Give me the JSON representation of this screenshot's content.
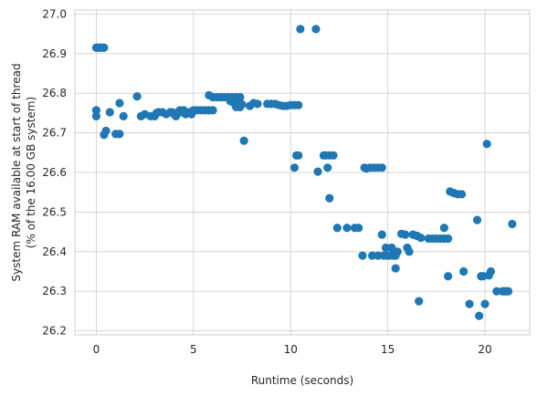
{
  "chart_data": {
    "type": "scatter",
    "title": "",
    "xlabel": "Runtime (seconds)",
    "ylabel_lines": [
      "System RAM available at start of thread",
      "(% of the 16.00 GB system)"
    ],
    "xlim": [
      -1.1,
      22.3
    ],
    "ylim": [
      26.19,
      27.01
    ],
    "xticks": [
      0,
      5,
      10,
      15,
      20
    ],
    "xtick_labels": [
      "0",
      "5",
      "10",
      "15",
      "20"
    ],
    "yticks": [
      26.2,
      26.3,
      26.4,
      26.5,
      26.6,
      26.7,
      26.8,
      26.9,
      27.0
    ],
    "ytick_labels": [
      "26.2",
      "26.3",
      "26.4",
      "26.5",
      "26.6",
      "26.7",
      "26.8",
      "26.9",
      "27.0"
    ],
    "grid": true,
    "color": "#1f77b4",
    "points": [
      [
        0.0,
        26.915
      ],
      [
        0.1,
        26.915
      ],
      [
        0.2,
        26.915
      ],
      [
        0.3,
        26.915
      ],
      [
        0.4,
        26.915
      ],
      [
        0.0,
        26.757
      ],
      [
        0.0,
        26.742
      ],
      [
        0.4,
        26.695
      ],
      [
        0.5,
        26.705
      ],
      [
        0.7,
        26.752
      ],
      [
        1.0,
        26.697
      ],
      [
        1.2,
        26.697
      ],
      [
        1.2,
        26.775
      ],
      [
        1.4,
        26.742
      ],
      [
        2.1,
        26.792
      ],
      [
        2.3,
        26.742
      ],
      [
        2.5,
        26.747
      ],
      [
        2.8,
        26.742
      ],
      [
        3.0,
        26.742
      ],
      [
        3.1,
        26.75
      ],
      [
        3.2,
        26.752
      ],
      [
        3.4,
        26.752
      ],
      [
        3.6,
        26.747
      ],
      [
        3.8,
        26.752
      ],
      [
        3.9,
        26.752
      ],
      [
        4.0,
        26.747
      ],
      [
        4.1,
        26.742
      ],
      [
        4.2,
        26.752
      ],
      [
        4.3,
        26.757
      ],
      [
        4.4,
        26.752
      ],
      [
        4.5,
        26.757
      ],
      [
        4.6,
        26.747
      ],
      [
        4.8,
        26.752
      ],
      [
        4.9,
        26.747
      ],
      [
        5.0,
        26.757
      ],
      [
        5.2,
        26.757
      ],
      [
        5.4,
        26.757
      ],
      [
        5.6,
        26.757
      ],
      [
        5.8,
        26.757
      ],
      [
        6.0,
        26.757
      ],
      [
        5.8,
        26.795
      ],
      [
        6.0,
        26.79
      ],
      [
        6.2,
        26.79
      ],
      [
        6.4,
        26.79
      ],
      [
        6.6,
        26.79
      ],
      [
        6.8,
        26.79
      ],
      [
        7.0,
        26.79
      ],
      [
        7.2,
        26.79
      ],
      [
        7.4,
        26.79
      ],
      [
        6.9,
        26.78
      ],
      [
        7.1,
        26.775
      ],
      [
        7.3,
        26.772
      ],
      [
        7.5,
        26.772
      ],
      [
        7.2,
        26.765
      ],
      [
        7.4,
        26.765
      ],
      [
        7.6,
        26.68
      ],
      [
        7.9,
        26.768
      ],
      [
        8.1,
        26.775
      ],
      [
        8.3,
        26.773
      ],
      [
        8.8,
        26.773
      ],
      [
        9.0,
        26.773
      ],
      [
        9.2,
        26.773
      ],
      [
        9.4,
        26.77
      ],
      [
        9.6,
        26.768
      ],
      [
        9.8,
        26.768
      ],
      [
        10.0,
        26.77
      ],
      [
        10.2,
        26.77
      ],
      [
        10.4,
        26.77
      ],
      [
        10.2,
        26.612
      ],
      [
        10.3,
        26.643
      ],
      [
        10.4,
        26.643
      ],
      [
        10.5,
        26.962
      ],
      [
        11.3,
        26.962
      ],
      [
        11.4,
        26.602
      ],
      [
        11.7,
        26.643
      ],
      [
        11.8,
        26.643
      ],
      [
        11.9,
        26.612
      ],
      [
        12.0,
        26.643
      ],
      [
        12.2,
        26.643
      ],
      [
        12.0,
        26.535
      ],
      [
        12.4,
        26.46
      ],
      [
        12.9,
        26.46
      ],
      [
        13.3,
        26.46
      ],
      [
        13.5,
        26.46
      ],
      [
        13.7,
        26.39
      ],
      [
        13.8,
        26.612
      ],
      [
        13.9,
        26.61
      ],
      [
        14.1,
        26.612
      ],
      [
        14.3,
        26.612
      ],
      [
        14.5,
        26.612
      ],
      [
        14.7,
        26.612
      ],
      [
        14.2,
        26.39
      ],
      [
        14.5,
        26.39
      ],
      [
        14.7,
        26.443
      ],
      [
        14.8,
        26.39
      ],
      [
        15.0,
        26.39
      ],
      [
        15.1,
        26.39
      ],
      [
        15.3,
        26.39
      ],
      [
        15.4,
        26.39
      ],
      [
        14.9,
        26.41
      ],
      [
        15.2,
        26.41
      ],
      [
        15.5,
        26.4
      ],
      [
        15.4,
        26.358
      ],
      [
        15.7,
        26.445
      ],
      [
        15.9,
        26.443
      ],
      [
        16.0,
        26.41
      ],
      [
        16.1,
        26.4
      ],
      [
        16.3,
        26.443
      ],
      [
        16.5,
        26.44
      ],
      [
        16.7,
        26.435
      ],
      [
        16.6,
        26.275
      ],
      [
        17.1,
        26.433
      ],
      [
        17.3,
        26.433
      ],
      [
        17.5,
        26.433
      ],
      [
        17.7,
        26.433
      ],
      [
        17.9,
        26.433
      ],
      [
        18.1,
        26.433
      ],
      [
        17.9,
        26.46
      ],
      [
        18.1,
        26.338
      ],
      [
        18.2,
        26.552
      ],
      [
        18.4,
        26.548
      ],
      [
        18.6,
        26.545
      ],
      [
        18.8,
        26.545
      ],
      [
        18.9,
        26.35
      ],
      [
        19.2,
        26.268
      ],
      [
        19.6,
        26.48
      ],
      [
        19.7,
        26.238
      ],
      [
        19.8,
        26.338
      ],
      [
        19.9,
        26.338
      ],
      [
        20.0,
        26.268
      ],
      [
        20.1,
        26.672
      ],
      [
        20.2,
        26.34
      ],
      [
        20.3,
        26.35
      ],
      [
        20.6,
        26.3
      ],
      [
        20.9,
        26.3
      ],
      [
        21.0,
        26.3
      ],
      [
        21.1,
        26.3
      ],
      [
        21.2,
        26.3
      ],
      [
        21.4,
        26.47
      ]
    ]
  }
}
